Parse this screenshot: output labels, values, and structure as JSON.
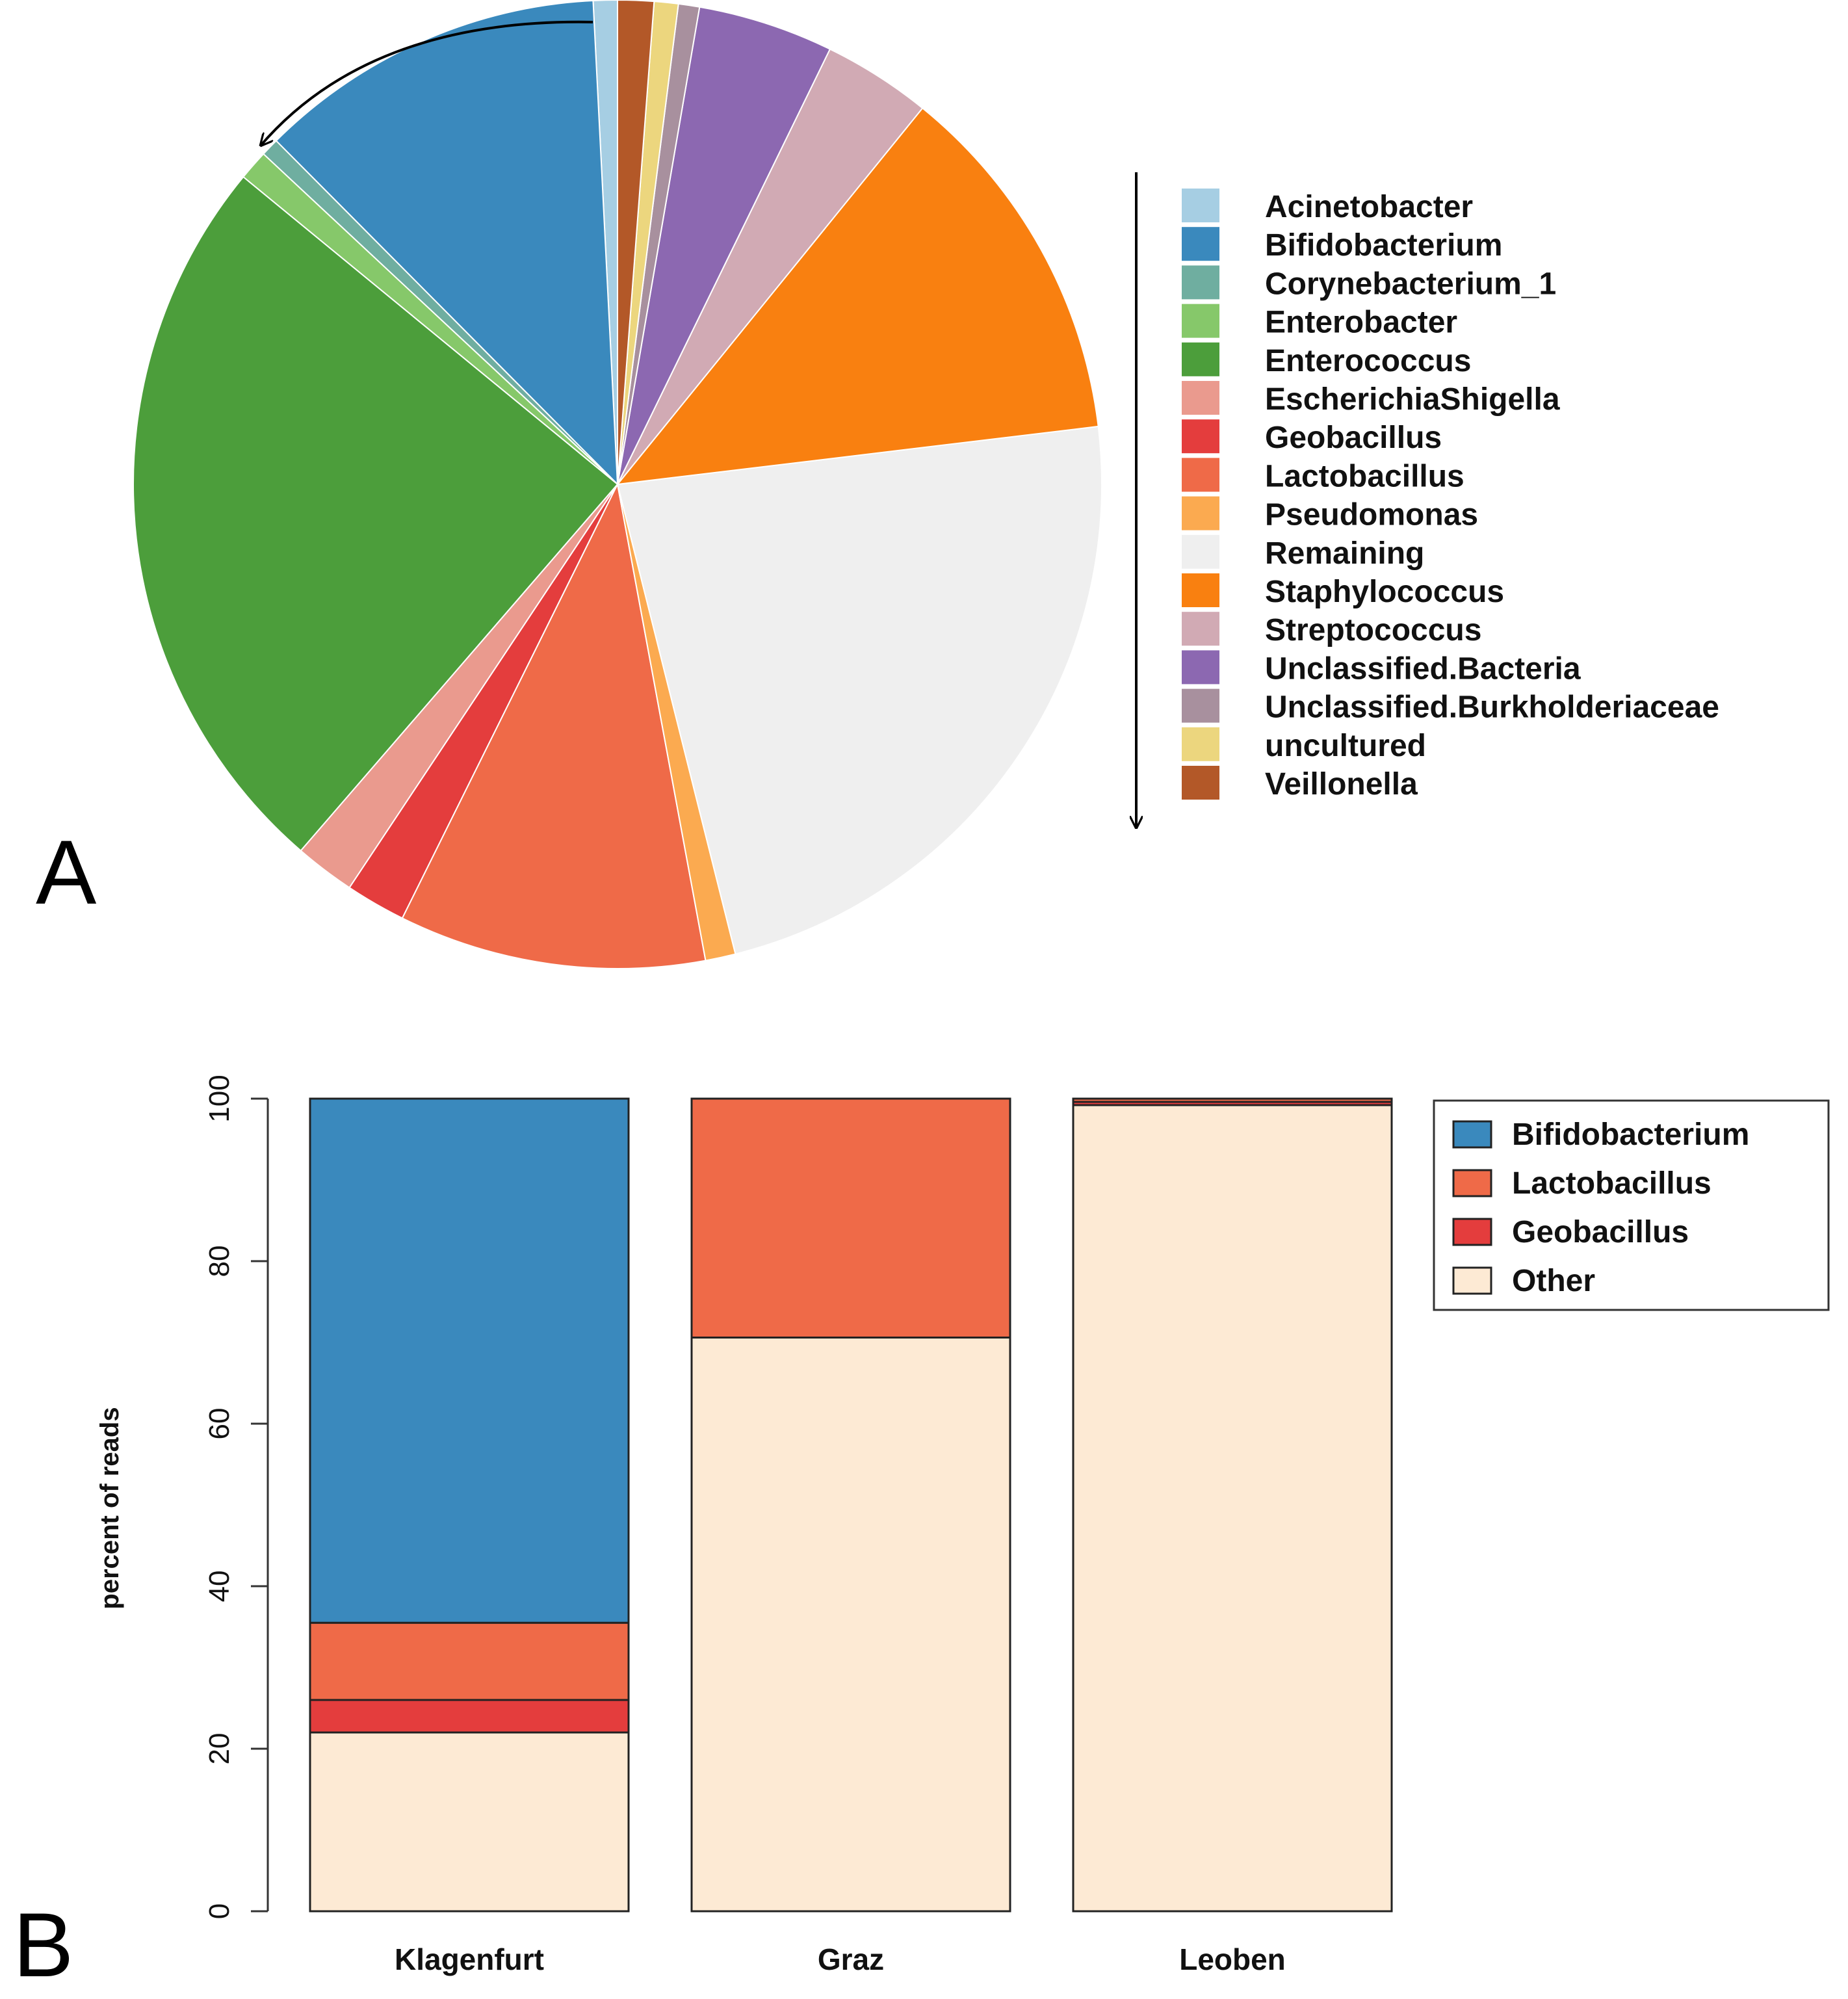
{
  "figure": {
    "panel_a_label": "A",
    "panel_b_label": "B"
  },
  "chart_data": [
    {
      "type": "pie",
      "title": "",
      "start": "top",
      "direction": "counterclockwise",
      "slices": [
        {
          "label": "Acinetobacter",
          "value": 0.8,
          "color": "#A6CEE3"
        },
        {
          "label": "Bifidobacterium",
          "value": 11.6,
          "color": "#3A89BD"
        },
        {
          "label": "Corynebacterium_1",
          "value": 0.6,
          "color": "#6FAEA0"
        },
        {
          "label": "Enterobacter",
          "value": 1.0,
          "color": "#86C86A"
        },
        {
          "label": "Enterococcus",
          "value": 24.5,
          "color": "#4C9E3B"
        },
        {
          "label": "EscherichiaShigella",
          "value": 2.0,
          "color": "#EA9A8E"
        },
        {
          "label": "Geobacillus",
          "value": 2.0,
          "color": "#E43D3D"
        },
        {
          "label": "Lactobacillus",
          "value": 10.2,
          "color": "#EF6A48"
        },
        {
          "label": "Pseudomonas",
          "value": 1.0,
          "color": "#FBAA50"
        },
        {
          "label": "Remaining",
          "value": 22.9,
          "color": "#EFEFEF"
        },
        {
          "label": "Staphylococcus",
          "value": 12.2,
          "color": "#F98010"
        },
        {
          "label": "Streptococcus",
          "value": 3.6,
          "color": "#D1AAB4"
        },
        {
          "label": "Unclassified.Bacteria",
          "value": 4.5,
          "color": "#8C68B1"
        },
        {
          "label": "Unclassified.Burkholderiaceae",
          "value": 0.7,
          "color": "#A8909E"
        },
        {
          "label": "uncultured",
          "value": 0.8,
          "color": "#ECD67E"
        },
        {
          "label": "Veillonella",
          "value": 1.2,
          "color": "#B35828"
        }
      ]
    },
    {
      "type": "bar",
      "stacked": true,
      "title": "",
      "xlabel": "",
      "ylabel": "percent of reads",
      "ylim": [
        0,
        100
      ],
      "yticks": [
        0,
        20,
        40,
        60,
        80,
        100
      ],
      "categories": [
        "Klagenfurt",
        "Graz",
        "Leoben"
      ],
      "series": [
        {
          "name": "Other",
          "color": "#FDEAD4",
          "values": [
            22,
            70.6,
            99.2
          ]
        },
        {
          "name": "Geobacillus",
          "color": "#E43D3D",
          "values": [
            4,
            0,
            0.4
          ]
        },
        {
          "name": "Lactobacillus",
          "color": "#EF6A48",
          "values": [
            9.5,
            29.4,
            0.4
          ]
        },
        {
          "name": "Bifidobacterium",
          "color": "#3A89BD",
          "values": [
            64.5,
            0,
            0
          ]
        }
      ],
      "legend": {
        "position": "top-right",
        "order": [
          "Bifidobacterium",
          "Lactobacillus",
          "Geobacillus",
          "Other"
        ]
      }
    }
  ]
}
